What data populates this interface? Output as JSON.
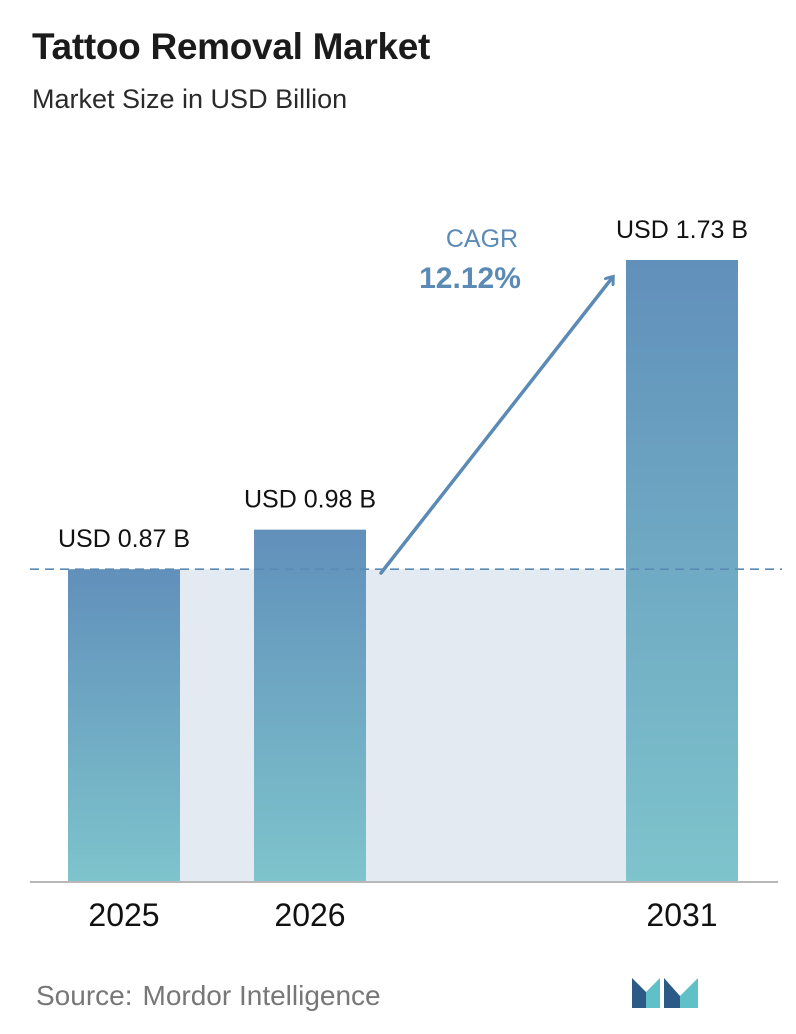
{
  "title": "Tattoo Removal Market",
  "subtitle": "Market Size in USD Billion",
  "source": {
    "label": "Source:",
    "name": "Mordor Intelligence"
  },
  "logo": {
    "icon": "mordor-intelligence-logo-icon",
    "colors": [
      "#2b5a86",
      "#5fc0c8"
    ]
  },
  "cagr": {
    "label": "CAGR",
    "value": "12.12%",
    "color": "#5b8bb5"
  },
  "colors": {
    "bar_top": "#6190bb",
    "bar_bottom": "#7ec4cc",
    "shade": "#e3eaf2",
    "dashed_line": "#5b8bb5",
    "baseline": "#b8b8b8",
    "arrow": "#5b8bb5"
  },
  "chart_data": {
    "type": "bar",
    "title": "Tattoo Removal Market",
    "subtitle": "Market Size in USD Billion",
    "categories": [
      "2025",
      "2026",
      "2031"
    ],
    "values": [
      0.87,
      0.98,
      1.73
    ],
    "data_labels": [
      "USD 0.87 B",
      "USD 0.98 B",
      "USD 1.73 B"
    ],
    "unit": "USD Billion",
    "ylim": [
      0,
      1.73
    ],
    "grid": false,
    "legend": "none",
    "reference_line": {
      "value": 0.87,
      "style": "dashed"
    }
  }
}
